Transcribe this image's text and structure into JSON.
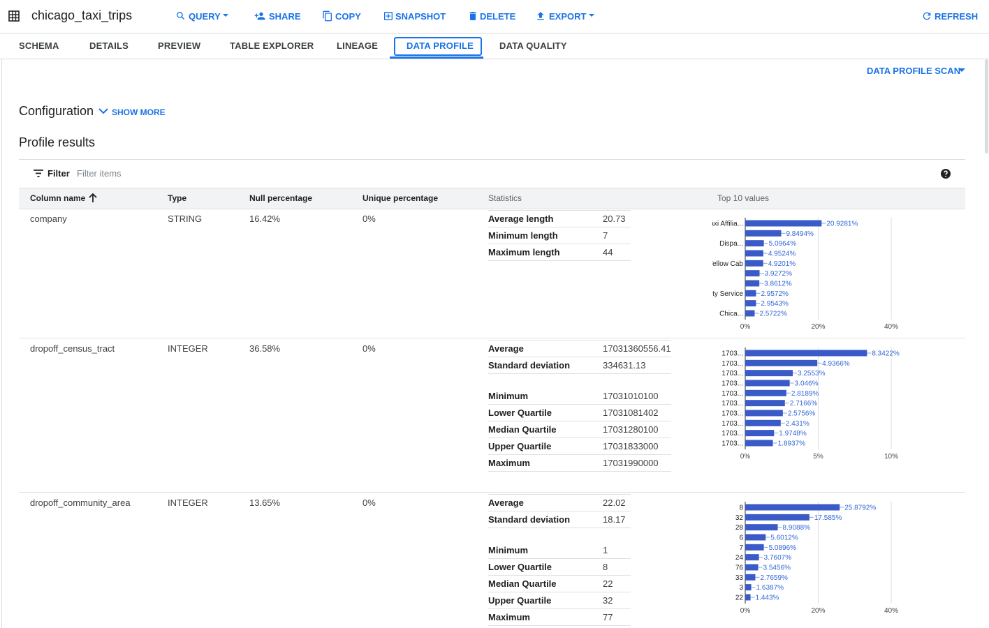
{
  "header": {
    "title": "chicago_taxi_trips",
    "actions": [
      "QUERY",
      "SHARE",
      "COPY",
      "SNAPSHOT",
      "DELETE",
      "EXPORT"
    ],
    "refresh": "REFRESH"
  },
  "tabs": [
    "SCHEMA",
    "DETAILS",
    "PREVIEW",
    "TABLE EXPLORER",
    "LINEAGE",
    "DATA PROFILE",
    "DATA QUALITY"
  ],
  "scan_menu": "DATA PROFILE SCAN",
  "configuration": {
    "title": "Configuration",
    "toggle": "SHOW MORE"
  },
  "profile_title": "Profile results",
  "filter": {
    "label": "Filter",
    "placeholder": "Filter items"
  },
  "table": {
    "columns": [
      "Column name",
      "Type",
      "Null percentage",
      "Unique percentage",
      "Statistics",
      "Top 10 values"
    ],
    "rows": [
      {
        "name": "company",
        "type": "STRING",
        "null_percentage": "16.42%",
        "unique_percentage": "0%",
        "statistics": [
          [
            {
              "label": "Average length",
              "value": 20.73
            },
            {
              "label": "Minimum length",
              "value": 7
            },
            {
              "label": "Maximum length",
              "value": 44
            }
          ]
        ],
        "chart_data": {
          "type": "bar",
          "orientation": "horizontal",
          "color": "#3a5bc7",
          "categories": [
            "Taxi Affilia...",
            null,
            "Dispa...",
            null,
            "Yellow Cab",
            null,
            null,
            "City Service",
            null,
            "Chica..."
          ],
          "values": [
            20.9281,
            9.8494,
            5.0964,
            4.9524,
            4.9201,
            3.9272,
            3.8612,
            2.9572,
            2.9543,
            2.5722
          ],
          "value_labels": [
            "20.9281%",
            "9.8494%",
            "5.0964%",
            "4.9524%",
            "4.9201%",
            "3.9272%",
            "3.8612%",
            "2.9572%",
            "2.9543%",
            "2.5722%"
          ],
          "xlim": [
            0,
            40
          ],
          "xticks": [
            {
              "value": 0,
              "label": "0%"
            },
            {
              "value": 20,
              "label": "20%"
            },
            {
              "value": 40,
              "label": "40%"
            }
          ],
          "grid": true
        }
      },
      {
        "name": "dropoff_census_tract",
        "type": "INTEGER",
        "null_percentage": "36.58%",
        "unique_percentage": "0%",
        "statistics": [
          [
            {
              "label": "Average",
              "value": 17031360556.41
            },
            {
              "label": "Standard deviation",
              "value": 334631.13
            }
          ],
          [
            {
              "label": "Minimum",
              "value": 17031010100
            },
            {
              "label": "Lower Quartile",
              "value": 17031081402
            },
            {
              "label": "Median Quartile",
              "value": 17031280100
            },
            {
              "label": "Upper Quartile",
              "value": 17031833000
            },
            {
              "label": "Maximum",
              "value": 17031990000
            }
          ]
        ],
        "chart_data": {
          "type": "bar",
          "orientation": "horizontal",
          "color": "#3a5bc7",
          "categories": [
            "1703...",
            "1703...",
            "1703...",
            "1703...",
            "1703...",
            "1703...",
            "1703...",
            "1703...",
            "1703...",
            "1703..."
          ],
          "values": [
            8.3422,
            4.9366,
            3.2553,
            3.046,
            2.8189,
            2.7166,
            2.5756,
            2.431,
            1.9748,
            1.8937
          ],
          "value_labels": [
            "8.3422%",
            "4.9366%",
            "3.2553%",
            "3.046%",
            "2.8189%",
            "2.7166%",
            "2.5756%",
            "2.431%",
            "1.9748%",
            "1.8937%"
          ],
          "xlim": [
            0,
            10
          ],
          "xticks": [
            {
              "value": 0,
              "label": "0%"
            },
            {
              "value": 5,
              "label": "5%"
            },
            {
              "value": 10,
              "label": "10%"
            }
          ],
          "grid": true
        }
      },
      {
        "name": "dropoff_community_area",
        "type": "INTEGER",
        "null_percentage": "13.65%",
        "unique_percentage": "0%",
        "statistics": [
          [
            {
              "label": "Average",
              "value": 22.02
            },
            {
              "label": "Standard deviation",
              "value": 18.17
            }
          ],
          [
            {
              "label": "Minimum",
              "value": 1
            },
            {
              "label": "Lower Quartile",
              "value": 8
            },
            {
              "label": "Median Quartile",
              "value": 22
            },
            {
              "label": "Upper Quartile",
              "value": 32
            },
            {
              "label": "Maximum",
              "value": 77
            }
          ]
        ],
        "chart_data": {
          "type": "bar",
          "orientation": "horizontal",
          "color": "#3a5bc7",
          "categories": [
            "8",
            "32",
            "28",
            "6",
            "7",
            "24",
            "76",
            "33",
            "3",
            "22"
          ],
          "values": [
            25.8792,
            17.585,
            8.9088,
            5.6012,
            5.0896,
            3.7607,
            3.5456,
            2.7659,
            1.6387,
            1.443
          ],
          "value_labels": [
            "25.8792%",
            "17.585%",
            "8.9088%",
            "5.6012%",
            "5.0896%",
            "3.7607%",
            "3.5456%",
            "2.7659%",
            "1.6387%",
            "1.443%"
          ],
          "xlim": [
            0,
            40
          ],
          "xticks": [
            {
              "value": 0,
              "label": "0%"
            },
            {
              "value": 20,
              "label": "20%"
            },
            {
              "value": 40,
              "label": "40%"
            }
          ],
          "grid": true
        }
      }
    ]
  }
}
